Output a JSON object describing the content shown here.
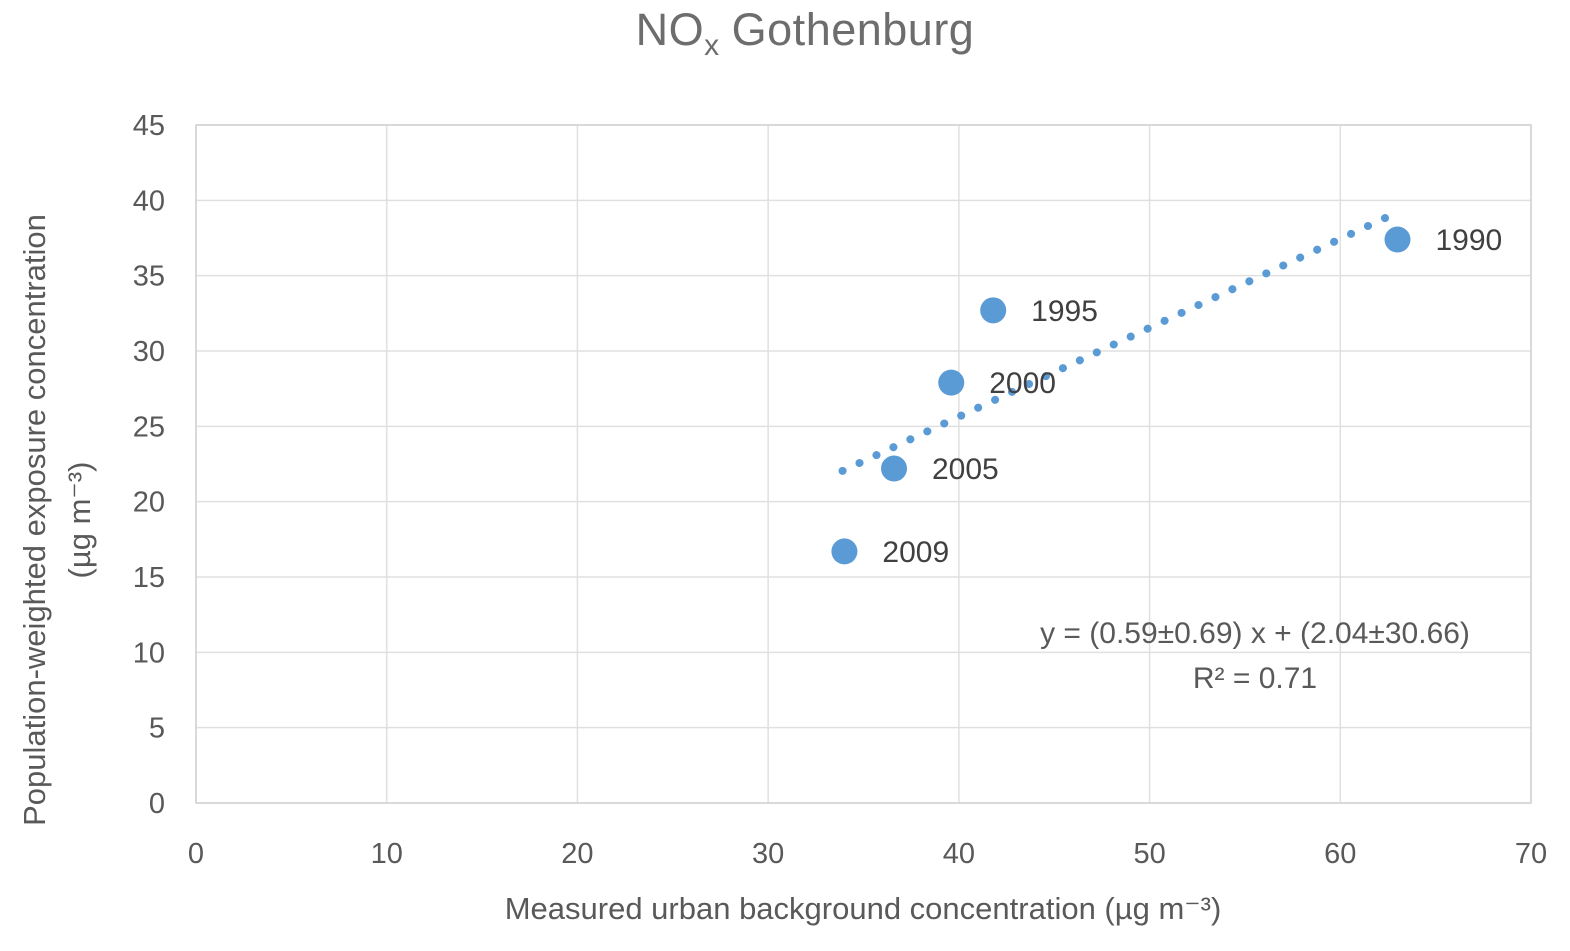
{
  "title_parts": {
    "pre": "NO",
    "sub": "x",
    "post": "Gothenburg"
  },
  "chart_data": {
    "type": "scatter",
    "title": "NOx Gothenburg",
    "xlabel": "Measured urban background concentration (µg m⁻³)",
    "ylabel_lines": [
      "Population-weighted exposure concentration",
      "(µg m⁻³)"
    ],
    "xlim": [
      0,
      70
    ],
    "ylim": [
      0,
      45
    ],
    "xticks": [
      0,
      10,
      20,
      30,
      40,
      50,
      60,
      70
    ],
    "yticks": [
      0,
      5,
      10,
      15,
      20,
      25,
      30,
      35,
      40,
      45
    ],
    "grid": "on",
    "legend": "none",
    "points": [
      {
        "year": "1990",
        "x": 63.0,
        "y": 37.4
      },
      {
        "year": "1995",
        "x": 41.8,
        "y": 32.7
      },
      {
        "year": "2000",
        "x": 39.6,
        "y": 27.9
      },
      {
        "year": "2005",
        "x": 36.6,
        "y": 22.2
      },
      {
        "year": "2009",
        "x": 34.0,
        "y": 16.7
      }
    ],
    "trendline": {
      "slope": 0.59,
      "intercept": 2.04,
      "x_start": 33.9,
      "x_end": 63.1,
      "style": "dotted"
    },
    "annotation": {
      "equation": "y = (0.59±0.69) x + (2.04±30.66)",
      "r_squared": "R² = 0.71"
    }
  },
  "colors": {
    "marker": "#5B9BD5",
    "trendline": "#5B9BD5",
    "grid": "#E0E0E0",
    "border": "#D2D2D2",
    "tick_text": "#595959",
    "title_text": "#6D6D6D",
    "axis_title_text": "#595959",
    "point_label_text": "#404040",
    "background": "#FFFFFF"
  }
}
